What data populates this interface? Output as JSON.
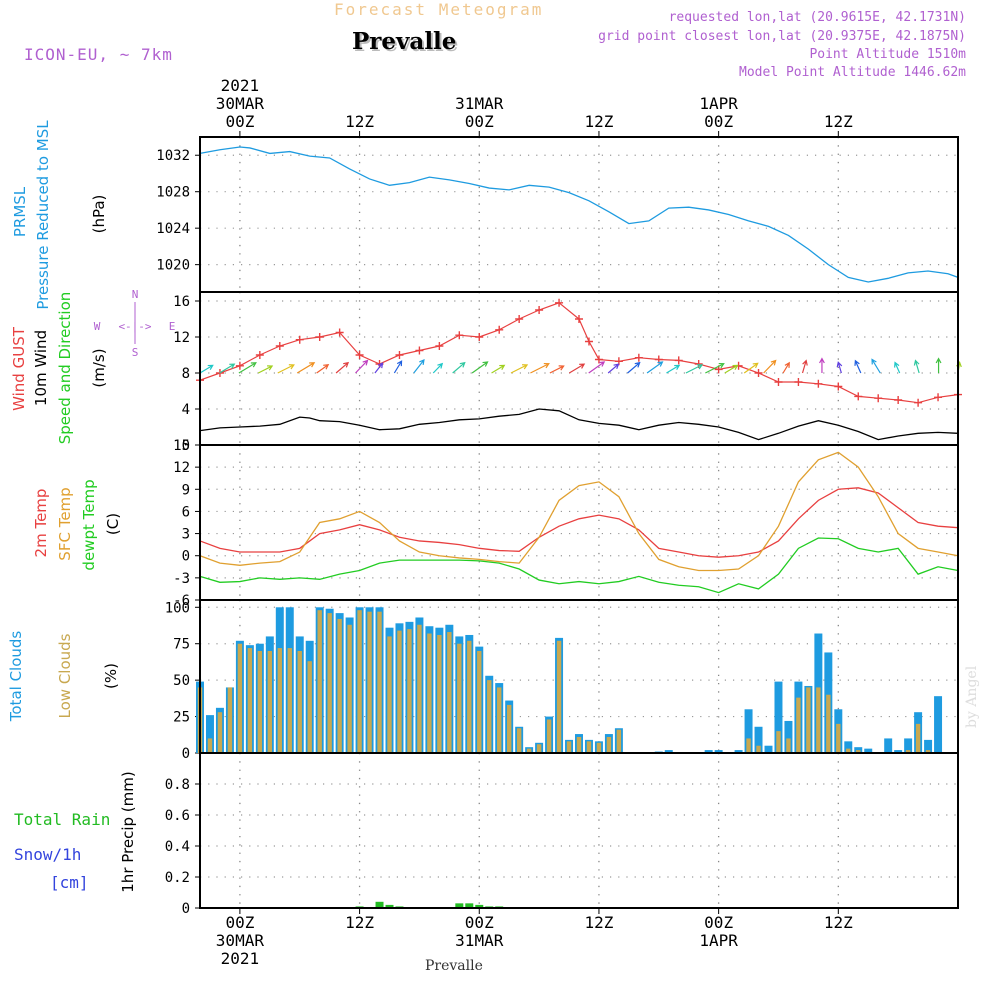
{
  "header": {
    "subtitle": "Forecast Meteogram",
    "station": "Prevalle",
    "model": "ICON-EU, ~ 7km",
    "requested": "requested lon,lat (20.9615E, 42.1731N)",
    "grid_point": "grid point closest lon,lat (20.9375E, 42.1875N)",
    "point_alt": "Point Altitude 1510m",
    "model_alt": "Model Point Altitude 1446.62m",
    "footer_station": "Prevalle",
    "watermark": "by Angel"
  },
  "time_axis": {
    "top": [
      {
        "lines": [
          "2021",
          "30MAR",
          "00Z"
        ]
      },
      {
        "lines": [
          "12Z"
        ]
      },
      {
        "lines": [
          "31MAR",
          "00Z"
        ]
      },
      {
        "lines": [
          "12Z"
        ]
      },
      {
        "lines": [
          "1APR",
          "00Z"
        ]
      },
      {
        "lines": [
          "12Z"
        ]
      }
    ],
    "bottom": [
      {
        "lines": [
          "00Z",
          "30MAR",
          "2021"
        ]
      },
      {
        "lines": [
          "12Z"
        ]
      },
      {
        "lines": [
          "00Z",
          "31MAR"
        ]
      },
      {
        "lines": [
          "12Z"
        ]
      },
      {
        "lines": [
          "00Z",
          "1APR"
        ]
      },
      {
        "lines": [
          "12Z"
        ]
      }
    ]
  },
  "panel_labels": {
    "pressure": [
      "PRMSL",
      "Pressure Reduced to MSL",
      "(hPa)"
    ],
    "wind": [
      "Wind GUST",
      "10m Wind",
      "Speed and Direction",
      "(m/s)"
    ],
    "compass": [
      "N",
      "S",
      "W",
      "E",
      "<-|->"
    ],
    "temp": [
      "2m Temp",
      "SFC Temp",
      "dewpt Temp",
      "(C)"
    ],
    "clouds": [
      "Total Clouds",
      "Low Clouds",
      "(%)"
    ],
    "precip": [
      "Total  Rain",
      "Snow/1h",
      "[cm]",
      "1hr Precip (mm)"
    ]
  },
  "colors": {
    "pressure": "#1e9be0",
    "gust": "#e84040",
    "wind": "#000000",
    "temp2m": "#e84040",
    "sfc": "#e0a030",
    "dewpt": "#22cc22",
    "total_clouds": "#1e9be0",
    "low_clouds": "#c8a850",
    "rain": "#22bb22",
    "snow": "#3344dd",
    "label_purple": "#b060d0"
  },
  "chart_data": [
    {
      "type": "line",
      "title": "PRMSL Pressure Reduced to MSL",
      "ylabel": "(hPa)",
      "x_hours": "-4..72",
      "ylim": [
        1017,
        1034
      ],
      "yticks": [
        "1020",
        "1024",
        "1028",
        "1032"
      ],
      "series": [
        {
          "name": "PRMSL",
          "x": [
            -4,
            -2,
            0,
            1,
            3,
            5,
            7,
            9,
            11,
            13,
            15,
            17,
            19,
            21,
            23,
            25,
            27,
            29,
            31,
            33,
            35,
            37,
            39,
            41,
            43,
            45,
            47,
            49,
            51,
            53,
            55,
            57,
            59,
            61,
            63,
            65,
            67,
            69,
            71,
            72
          ],
          "values": [
            1032.2,
            1032.6,
            1032.9,
            1032.8,
            1032.2,
            1032.4,
            1031.9,
            1031.7,
            1030.5,
            1029.4,
            1028.7,
            1029.0,
            1029.6,
            1029.3,
            1028.9,
            1028.4,
            1028.2,
            1028.7,
            1028.5,
            1027.9,
            1027.0,
            1025.8,
            1024.5,
            1024.8,
            1026.2,
            1026.3,
            1026.0,
            1025.5,
            1024.8,
            1024.2,
            1023.2,
            1021.7,
            1020.0,
            1018.6,
            1018.1,
            1018.5,
            1019.1,
            1019.3,
            1019.0,
            1018.6
          ]
        }
      ]
    },
    {
      "type": "line",
      "title": "Wind GUST / 10m Wind Speed and Direction",
      "ylabel": "(m/s)",
      "x_hours": "-4..72",
      "ylim": [
        0,
        17
      ],
      "yticks": [
        "0",
        "4",
        "8",
        "12",
        "16"
      ],
      "series": [
        {
          "name": "Wind GUST",
          "x": [
            -4,
            -2,
            0,
            2,
            4,
            6,
            8,
            10,
            12,
            14,
            16,
            18,
            20,
            22,
            24,
            26,
            28,
            30,
            32,
            34,
            35,
            36,
            38,
            40,
            42,
            44,
            46,
            48,
            50,
            52,
            54,
            56,
            58,
            60,
            62,
            64,
            66,
            68,
            70,
            72
          ],
          "values": [
            7.2,
            8.0,
            8.8,
            10.0,
            11.0,
            11.7,
            12.0,
            12.5,
            10.0,
            9.0,
            10.0,
            10.5,
            11.0,
            12.2,
            12.0,
            12.8,
            14.0,
            15.0,
            15.8,
            14.0,
            11.5,
            9.5,
            9.3,
            9.7,
            9.5,
            9.4,
            9.0,
            8.4,
            8.8,
            8.0,
            7.0,
            7.0,
            6.8,
            6.5,
            5.4,
            5.2,
            5.0,
            4.7,
            5.3,
            5.6
          ]
        },
        {
          "name": "10m Wind",
          "x": [
            -4,
            -2,
            0,
            2,
            4,
            6,
            7,
            8,
            10,
            12,
            14,
            16,
            18,
            20,
            22,
            24,
            26,
            28,
            30,
            32,
            34,
            36,
            38,
            40,
            42,
            44,
            46,
            48,
            50,
            52,
            54,
            56,
            58,
            60,
            62,
            64,
            66,
            68,
            70,
            72
          ],
          "values": [
            1.6,
            1.9,
            2.0,
            2.1,
            2.3,
            3.1,
            3.0,
            2.7,
            2.6,
            2.2,
            1.7,
            1.8,
            2.3,
            2.5,
            2.8,
            2.9,
            3.2,
            3.4,
            4.0,
            3.8,
            2.8,
            2.4,
            2.2,
            1.7,
            2.2,
            2.5,
            2.3,
            2.0,
            1.4,
            0.6,
            1.3,
            2.1,
            2.7,
            2.2,
            1.5,
            0.6,
            1.0,
            1.3,
            1.4,
            1.3
          ]
        }
      ],
      "direction_arrows_deg": [
        225,
        225,
        225,
        230,
        230,
        225,
        220,
        215,
        210,
        205,
        200,
        205,
        210,
        215,
        220,
        225,
        230,
        230,
        230,
        225,
        220,
        215,
        215,
        220,
        225,
        230,
        230,
        225,
        220,
        210,
        200,
        190,
        180,
        170,
        165,
        160,
        165,
        170,
        180,
        185
      ]
    },
    {
      "type": "line",
      "title": "2m Temp / SFC Temp / dewpt Temp",
      "ylabel": "(C)",
      "x_hours": "-4..72",
      "ylim": [
        -6,
        15
      ],
      "yticks": [
        "-6",
        "-3",
        "0",
        "3",
        "6",
        "9",
        "12",
        "15"
      ],
      "series": [
        {
          "name": "2m Temp",
          "x": [
            -4,
            -2,
            0,
            2,
            4,
            6,
            8,
            10,
            12,
            14,
            16,
            18,
            20,
            22,
            24,
            26,
            28,
            30,
            32,
            34,
            36,
            38,
            40,
            42,
            44,
            46,
            48,
            50,
            52,
            54,
            56,
            58,
            60,
            62,
            64,
            66,
            68,
            70,
            72
          ],
          "values": [
            2.0,
            1.0,
            0.5,
            0.5,
            0.5,
            1.0,
            3.0,
            3.5,
            4.2,
            3.5,
            2.5,
            2.0,
            1.8,
            1.5,
            1.0,
            0.7,
            0.6,
            2.5,
            4.0,
            5.0,
            5.5,
            5.0,
            3.5,
            1.0,
            0.5,
            0.0,
            -0.2,
            0.0,
            0.5,
            2.0,
            5.0,
            7.5,
            9.0,
            9.2,
            8.5,
            6.5,
            4.5,
            4.0,
            3.8
          ]
        },
        {
          "name": "SFC Temp",
          "x": [
            -4,
            -2,
            0,
            2,
            4,
            6,
            8,
            10,
            12,
            14,
            16,
            18,
            20,
            22,
            24,
            26,
            28,
            30,
            32,
            34,
            36,
            38,
            40,
            42,
            44,
            46,
            48,
            50,
            52,
            54,
            56,
            58,
            60,
            62,
            64,
            66,
            68,
            70,
            72
          ],
          "values": [
            0.0,
            -1.0,
            -1.3,
            -1.0,
            -0.8,
            0.5,
            4.5,
            5.0,
            6.0,
            4.5,
            2.0,
            0.5,
            0.0,
            -0.3,
            -0.5,
            -0.8,
            -1.0,
            2.5,
            7.5,
            9.5,
            10.0,
            8.0,
            3.0,
            -0.5,
            -1.5,
            -2.0,
            -2.0,
            -1.8,
            0.0,
            4.0,
            10.0,
            13.0,
            14.0,
            12.0,
            8.0,
            3.0,
            1.0,
            0.5,
            0.0
          ]
        },
        {
          "name": "dewpt Temp",
          "x": [
            -4,
            -2,
            0,
            2,
            4,
            6,
            8,
            10,
            12,
            14,
            16,
            18,
            20,
            22,
            24,
            26,
            28,
            30,
            32,
            34,
            36,
            38,
            40,
            42,
            44,
            46,
            48,
            50,
            52,
            54,
            56,
            58,
            60,
            62,
            64,
            66,
            68,
            70,
            72
          ],
          "values": [
            -2.8,
            -3.6,
            -3.5,
            -3.0,
            -3.2,
            -3.0,
            -3.2,
            -2.5,
            -2.0,
            -1.0,
            -0.6,
            -0.6,
            -0.6,
            -0.6,
            -0.7,
            -1.0,
            -1.8,
            -3.3,
            -3.8,
            -3.5,
            -3.8,
            -3.5,
            -2.8,
            -3.6,
            -4.0,
            -4.2,
            -5.0,
            -3.8,
            -4.5,
            -2.5,
            1.0,
            2.4,
            2.3,
            1.0,
            0.5,
            1.0,
            -2.5,
            -1.5,
            -2.0
          ]
        }
      ]
    },
    {
      "type": "bar",
      "title": "Total Clouds / Low Clouds",
      "ylabel": "(%)",
      "x_hours": "-4..72",
      "ylim": [
        0,
        105
      ],
      "yticks": [
        "0",
        "25",
        "50",
        "75",
        "100"
      ],
      "x": [
        -4,
        -3,
        -2,
        -1,
        0,
        1,
        2,
        3,
        4,
        5,
        6,
        7,
        8,
        9,
        10,
        11,
        12,
        13,
        14,
        15,
        16,
        17,
        18,
        19,
        20,
        21,
        22,
        23,
        24,
        25,
        26,
        27,
        28,
        29,
        30,
        31,
        32,
        33,
        34,
        35,
        36,
        37,
        38,
        39,
        40,
        41,
        42,
        43,
        44,
        45,
        46,
        47,
        48,
        49,
        50,
        51,
        52,
        53,
        54,
        55,
        56,
        57,
        58,
        59,
        60,
        61,
        62,
        63,
        64,
        65,
        66,
        67,
        68,
        69,
        70,
        71,
        72
      ],
      "series": [
        {
          "name": "Total Clouds",
          "values": [
            49,
            26,
            31,
            45,
            77,
            74,
            75,
            80,
            100,
            100,
            80,
            77,
            100,
            99,
            96,
            93,
            100,
            100,
            100,
            86,
            89,
            90,
            93,
            87,
            86,
            88,
            80,
            81,
            73,
            53,
            48,
            36,
            18,
            4,
            7,
            25,
            79,
            9,
            13,
            9,
            8,
            13,
            17,
            0,
            0,
            0,
            1,
            2,
            0,
            0,
            0,
            2,
            2,
            0,
            2,
            30,
            18,
            5,
            49,
            22,
            49,
            46,
            82,
            69,
            30,
            8,
            4,
            3,
            0,
            10,
            2,
            10,
            28,
            9,
            39,
            0,
            0
          ]
        },
        {
          "name": "Low Clouds",
          "values": [
            45,
            10,
            28,
            45,
            75,
            72,
            70,
            70,
            72,
            72,
            70,
            63,
            98,
            96,
            92,
            88,
            98,
            97,
            97,
            80,
            84,
            85,
            88,
            82,
            81,
            83,
            75,
            77,
            70,
            50,
            45,
            33,
            17,
            3,
            6,
            23,
            77,
            8,
            11,
            8,
            7,
            11,
            16,
            0,
            0,
            0,
            0,
            0,
            0,
            0,
            0,
            0,
            0,
            0,
            0,
            10,
            5,
            0,
            15,
            10,
            38,
            45,
            45,
            40,
            20,
            3,
            2,
            0,
            0,
            0,
            0,
            2,
            20,
            2,
            0,
            0,
            0
          ]
        }
      ]
    },
    {
      "type": "bar",
      "title": "Total Rain / Snow 1h",
      "ylabel": "1hr Precip (mm)",
      "x_hours": "-4..72",
      "ylim": [
        0,
        1.0
      ],
      "yticks": [
        "0",
        "0.2",
        "0.4",
        "0.6",
        "0.8"
      ],
      "x": [
        12,
        14,
        15,
        16,
        22,
        23,
        24,
        25,
        26
      ],
      "series": [
        {
          "name": "Total Rain",
          "values": [
            0.01,
            0.04,
            0.02,
            0.01,
            0.03,
            0.03,
            0.02,
            0.01,
            0.01
          ]
        },
        {
          "name": "Snow/1h",
          "values": [
            0,
            0,
            0,
            0,
            0,
            0,
            0,
            0,
            0
          ]
        }
      ]
    }
  ]
}
